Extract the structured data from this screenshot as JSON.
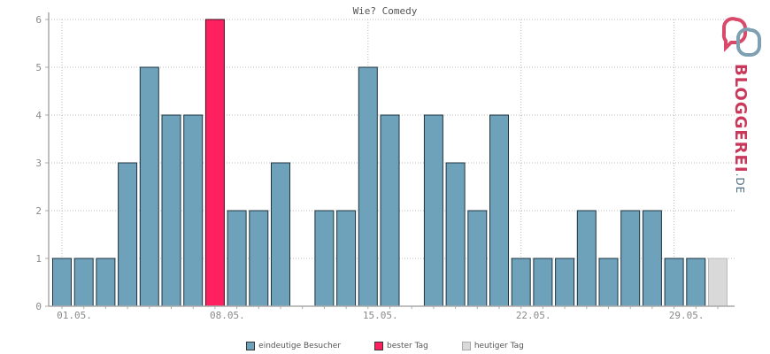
{
  "chart_data": {
    "type": "bar",
    "title": "Wie? Comedy",
    "ylim": [
      0,
      6
    ],
    "y_ticks": [
      "0",
      "1",
      "2",
      "3",
      "4",
      "5",
      "6"
    ],
    "x_ticks": [
      {
        "day": 1,
        "label": "01.05."
      },
      {
        "day": 8,
        "label": "08.05."
      },
      {
        "day": 15,
        "label": "15.05."
      },
      {
        "day": 22,
        "label": "22.05."
      },
      {
        "day": 29,
        "label": "29.05."
      }
    ],
    "days": [
      1,
      2,
      3,
      4,
      5,
      6,
      7,
      8,
      9,
      10,
      11,
      12,
      13,
      14,
      15,
      16,
      17,
      18,
      19,
      20,
      21,
      22,
      23,
      24,
      25,
      26,
      27,
      28,
      29,
      30,
      31
    ],
    "values": [
      1,
      1,
      1,
      3,
      5,
      4,
      4,
      6,
      2,
      2,
      3,
      0,
      2,
      2,
      5,
      4,
      0,
      4,
      3,
      2,
      4,
      1,
      1,
      1,
      2,
      1,
      2,
      2,
      1,
      1,
      1
    ],
    "best_day": 8,
    "today": 31,
    "colors": {
      "bar": "#6ea2ba",
      "best": "#ff2060",
      "today": "#d9d9d9",
      "grid": "#bbbbbb",
      "axis": "#aaaaaa"
    },
    "grid": true,
    "legend_position": "bottom"
  },
  "legend": [
    {
      "label": "eindeutige Besucher",
      "color": "#6ea2ba"
    },
    {
      "label": "bester Tag",
      "color": "#ff2060"
    },
    {
      "label": "heutiger Tag",
      "color": "#d9d9d9"
    }
  ],
  "logo": {
    "main": "BLOGGEREI",
    "suffix": ".DE"
  }
}
